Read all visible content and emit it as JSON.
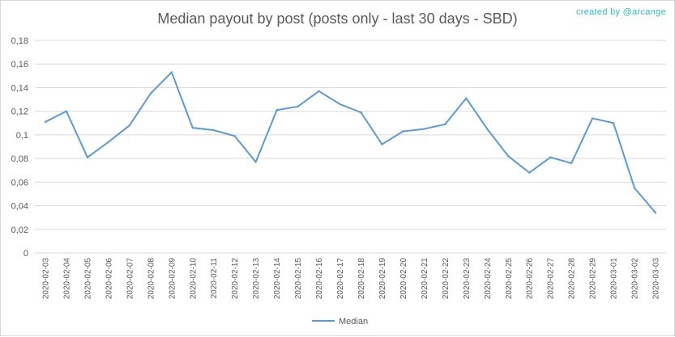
{
  "header": {
    "title": "Median payout by post (posts only - last 30 days - SBD)",
    "credit": "created by @arcange"
  },
  "colors": {
    "series": "#5b9bd5",
    "grid": "#d9d9d9",
    "text": "#595959",
    "credit": "#2fbfb5"
  },
  "chart_data": {
    "type": "line",
    "title": "Median payout by post (posts only - last 30 days - SBD)",
    "xlabel": "",
    "ylabel": "",
    "ylim": [
      0,
      0.18
    ],
    "yticks": [
      "0",
      "0,02",
      "0,04",
      "0,06",
      "0,08",
      "0,1",
      "0,12",
      "0,14",
      "0,16",
      "0,18"
    ],
    "grid": true,
    "legend_position": "bottom",
    "categories": [
      "2020-02-03",
      "2020-02-04",
      "2020-02-05",
      "2020-02-06",
      "2020-02-07",
      "2020-02-08",
      "2020-02-09",
      "2020-02-10",
      "2020-02-11",
      "2020-02-12",
      "2020-02-13",
      "2020-02-14",
      "2020-02-15",
      "2020-02-16",
      "2020-02-17",
      "2020-02-18",
      "2020-02-19",
      "2020-02-20",
      "2020-02-21",
      "2020-02-22",
      "2020-02-23",
      "2020-02-24",
      "2020-02-25",
      "2020-02-26",
      "2020-02-27",
      "2020-02-28",
      "2020-02-29",
      "2020-03-01",
      "2020-03-02",
      "2020-03-03"
    ],
    "series": [
      {
        "name": "Median",
        "values": [
          0.111,
          0.12,
          0.081,
          0.094,
          0.108,
          0.135,
          0.153,
          0.106,
          0.104,
          0.099,
          0.077,
          0.121,
          0.124,
          0.137,
          0.126,
          0.119,
          0.092,
          0.103,
          0.105,
          0.109,
          0.131,
          0.105,
          0.082,
          0.068,
          0.081,
          0.076,
          0.114,
          0.11,
          0.055,
          0.034
        ]
      }
    ]
  }
}
